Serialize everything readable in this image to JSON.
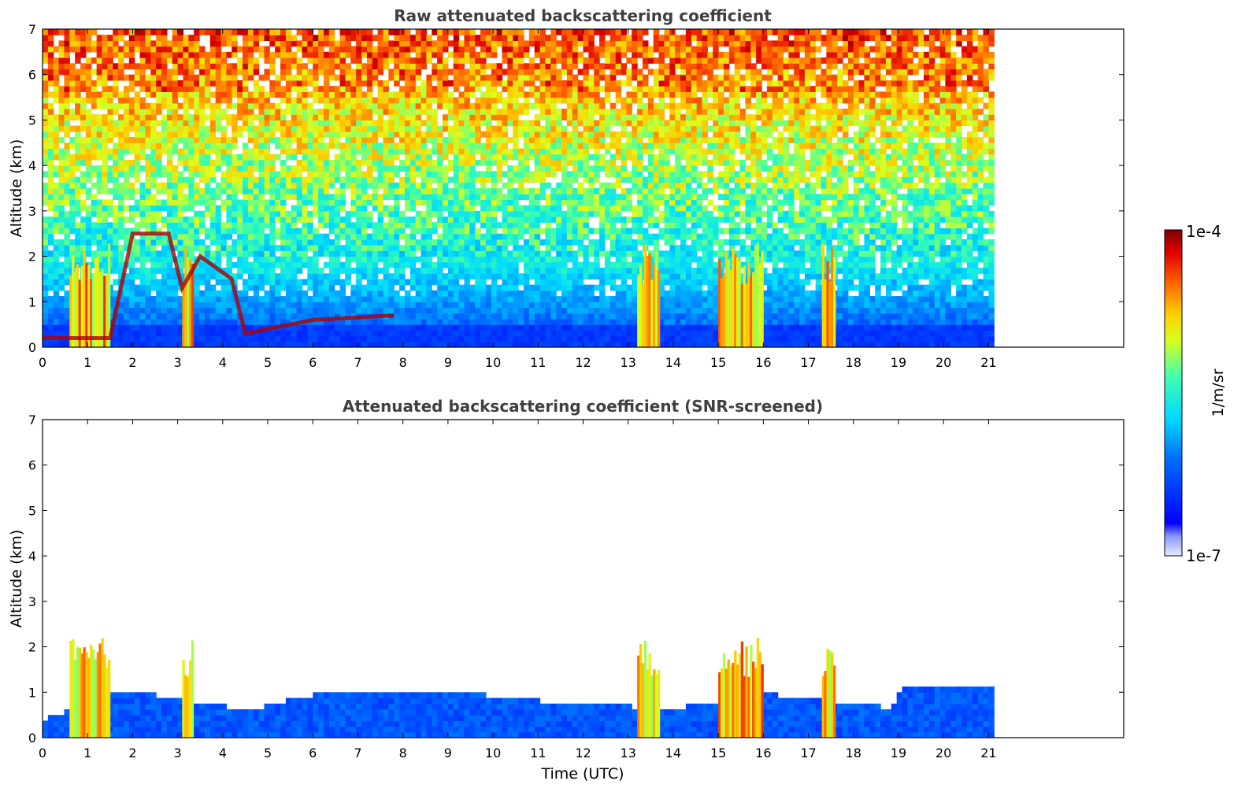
{
  "figure": {
    "colorbar": {
      "label": "1/m/sr",
      "max_label": "1e-4",
      "min_label": "1e-7",
      "scale": "log",
      "range": [
        1e-07,
        0.0001
      ]
    }
  },
  "chart_data": [
    {
      "type": "heatmap",
      "title": "Raw attenuated backscattering coefficient",
      "xlabel": "",
      "ylabel": "Altitude (km)",
      "xlim": [
        0,
        24
      ],
      "ylim": [
        0,
        7
      ],
      "x_ticks": [
        0,
        1,
        2,
        3,
        4,
        5,
        6,
        7,
        8,
        9,
        10,
        11,
        12,
        13,
        14,
        15,
        16,
        17,
        18,
        19,
        20,
        21
      ],
      "y_ticks": [
        0,
        1,
        2,
        3,
        4,
        5,
        6,
        7
      ],
      "data_extent_x": [
        0,
        21
      ],
      "colormap": "jet",
      "features": {
        "boundary_layer_top_km": 0.45,
        "aerosol_layer": [
          [
            0,
            0.2
          ],
          [
            1.5,
            0.2
          ],
          [
            2,
            2.5
          ],
          [
            2.8,
            2.5
          ],
          [
            3.1,
            1.3
          ],
          [
            3.5,
            2.0
          ],
          [
            4.2,
            1.5
          ],
          [
            4.5,
            0.3
          ],
          [
            6,
            0.6
          ],
          [
            7.8,
            0.7
          ]
        ],
        "cloud_columns": [
          [
            0.6,
            1.5
          ],
          [
            3.1,
            3.3
          ],
          [
            13.2,
            13.7
          ],
          [
            15.0,
            16.0
          ],
          [
            17.3,
            17.6
          ]
        ]
      }
    },
    {
      "type": "heatmap",
      "title": "Attenuated backscattering coefficient (SNR-screened)",
      "xlabel": "Time (UTC)",
      "ylabel": "Altitude (km)",
      "xlim": [
        0,
        24
      ],
      "ylim": [
        0,
        7
      ],
      "x_ticks": [
        0,
        1,
        2,
        3,
        4,
        5,
        6,
        7,
        8,
        9,
        10,
        11,
        12,
        13,
        14,
        15,
        16,
        17,
        18,
        19,
        20,
        21
      ],
      "y_ticks": [
        0,
        1,
        2,
        3,
        4,
        5,
        6,
        7
      ],
      "data_extent_x": [
        0,
        21
      ],
      "colormap": "jet",
      "features": {
        "screened_layer_top_km": [
          [
            0,
            0.35
          ],
          [
            1.6,
            1.0
          ],
          [
            4.5,
            0.55
          ],
          [
            6,
            0.9
          ],
          [
            9,
            0.95
          ],
          [
            12,
            0.65
          ],
          [
            14,
            0.6
          ],
          [
            16,
            0.9
          ],
          [
            18.8,
            0.6
          ],
          [
            19,
            1.0
          ],
          [
            21,
            1.0
          ]
        ],
        "cloud_columns": [
          [
            0.6,
            1.5
          ],
          [
            3.1,
            3.3
          ],
          [
            13.2,
            13.7
          ],
          [
            15.0,
            16.0
          ],
          [
            17.3,
            17.6
          ]
        ]
      }
    }
  ]
}
